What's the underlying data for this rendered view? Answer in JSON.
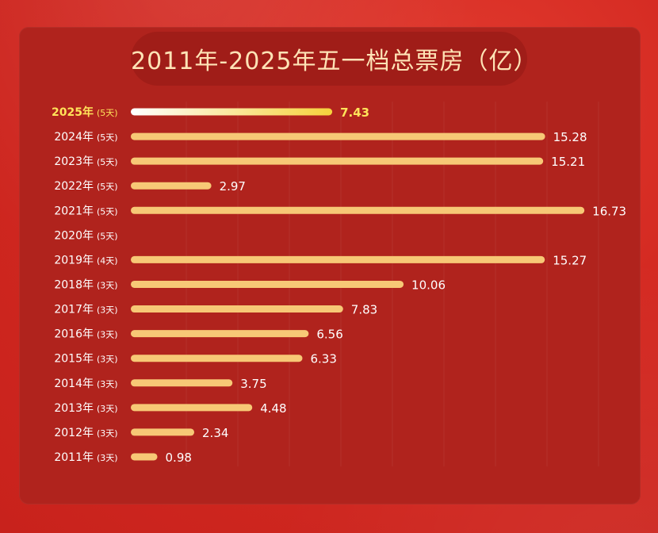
{
  "chart_data": {
    "type": "bar",
    "orientation": "horizontal",
    "title": "2011年-2025年五一档总票房（亿）",
    "grid": true,
    "categories": [
      "2025年",
      "2024年",
      "2023年",
      "2022年",
      "2021年",
      "2020年",
      "2019年",
      "2018年",
      "2017年",
      "2016年",
      "2015年",
      "2014年",
      "2013年",
      "2012年",
      "2011年"
    ],
    "days": [
      "(5天)",
      "(5天)",
      "(5天)",
      "(5天)",
      "(5天)",
      "(5天)",
      "(4天)",
      "(3天)",
      "(3天)",
      "(3天)",
      "(3天)",
      "(3天)",
      "(3天)",
      "(3天)",
      "(3天)"
    ],
    "values": [
      7.43,
      15.28,
      15.21,
      2.97,
      16.73,
      null,
      15.27,
      10.06,
      7.83,
      6.56,
      6.33,
      3.75,
      4.48,
      2.34,
      0.98
    ],
    "value_labels": [
      "7.43",
      "15.28",
      "15.21",
      "2.97",
      "16.73",
      "",
      "15.27",
      "10.06",
      "7.83",
      "6.56",
      "6.33",
      "3.75",
      "4.48",
      "2.34",
      "0.98"
    ],
    "highlight_index": 0,
    "colors": {
      "bar": "#f7c876",
      "highlight_bar_start": "#ffffff",
      "highlight_bar_end": "#f5d13c",
      "label": "#ffffff",
      "highlight_label": "#ffe35a",
      "title": "#ffe3b6"
    }
  }
}
